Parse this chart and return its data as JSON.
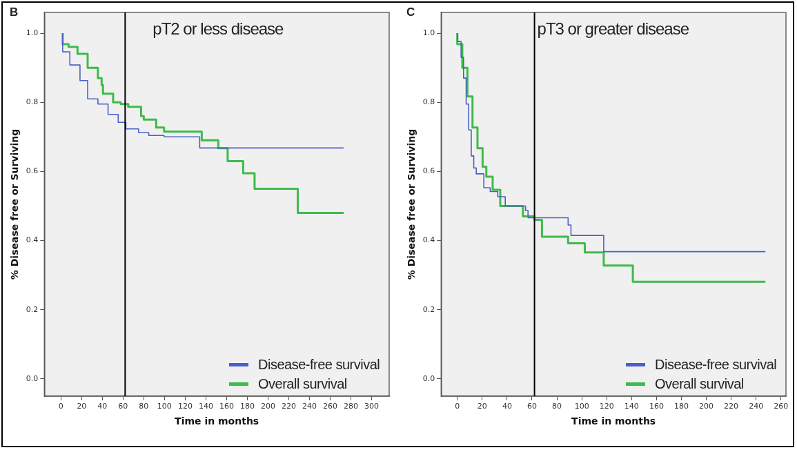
{
  "chart_data": [
    {
      "type": "step",
      "title": "pT2 or less disease",
      "annotations": [
        "B"
      ],
      "xlabel": "Time in months",
      "ylabel": "% Disease free or Surviving",
      "xlim": [
        -16,
        317
      ],
      "xticks": [
        0,
        20,
        40,
        60,
        80,
        100,
        120,
        140,
        160,
        180,
        200,
        220,
        240,
        260,
        280,
        300
      ],
      "ylim": [
        -0.05,
        1.06
      ],
      "yticks": [
        {
          "value": 0,
          "label": "0.0"
        },
        {
          "value": 0.2,
          "label": "0.2"
        },
        {
          "value": 0.4,
          "label": "0.4"
        },
        {
          "value": 0.6,
          "label": "0.6"
        },
        {
          "value": 0.8,
          "label": "0.8"
        },
        {
          "value": 1,
          "label": "1.0"
        }
      ],
      "grid": false,
      "legend": "bottom right",
      "ref_lines": [
        {
          "axis": "x",
          "value": 62,
          "color": "#000000"
        }
      ],
      "series": [
        {
          "name": "Disease-free survival",
          "color": "#4b5fc8",
          "x": [
            1.7,
            8.6,
            18.4,
            25.8,
            35.7,
            45.5,
            55.3,
            62.7,
            75,
            84.8,
            99.6,
            121.7,
            134,
            135,
            273
          ],
          "values": [
            1.0,
            0.946,
            0.908,
            0.863,
            0.81,
            0.795,
            0.765,
            0.742,
            0.723,
            0.712,
            0.704,
            0.7,
            0.7,
            0.668,
            0.668
          ]
        },
        {
          "name": "Overall survival",
          "color": "#3dbb4b",
          "x": [
            1.7,
            7.4,
            16,
            25.8,
            35.7,
            39.3,
            40.6,
            50.4,
            57.8,
            65,
            77.4,
            80,
            92,
            99.6,
            107,
            136,
            137.7,
            152,
            153.7,
            161,
            162,
            176,
            177,
            187,
            188,
            228.7,
            230,
            273
          ],
          "values": [
            1.0,
            0.968,
            0.96,
            0.94,
            0.9,
            0.87,
            0.85,
            0.825,
            0.8,
            0.795,
            0.787,
            0.76,
            0.75,
            0.727,
            0.715,
            0.715,
            0.69,
            0.69,
            0.667,
            0.667,
            0.63,
            0.63,
            0.595,
            0.595,
            0.55,
            0.55,
            0.48,
            0.48
          ]
        }
      ]
    },
    {
      "type": "step",
      "title": "pT3 or greater disease",
      "annotations": [
        "C"
      ],
      "xlabel": "Time in months",
      "ylabel": "% Disease free or Surviving",
      "xlim": [
        -13,
        264
      ],
      "xticks": [
        0,
        20,
        40,
        60,
        80,
        100,
        120,
        140,
        160,
        180,
        200,
        220,
        240,
        260
      ],
      "ylim": [
        -0.05,
        1.06
      ],
      "yticks": [
        {
          "value": 0,
          "label": "0.0"
        },
        {
          "value": 0.2,
          "label": "0.2"
        },
        {
          "value": 0.4,
          "label": "0.4"
        },
        {
          "value": 0.6,
          "label": "0.6"
        },
        {
          "value": 0.8,
          "label": "0.8"
        },
        {
          "value": 1,
          "label": "1.0"
        }
      ],
      "grid": false,
      "legend": "bottom right",
      "ref_lines": [
        {
          "axis": "x",
          "value": 62,
          "color": "#000000"
        }
      ],
      "series": [
        {
          "name": "Disease-free survival",
          "color": "#4b5fc8",
          "x": [
            0,
            3,
            5,
            7.1,
            9.1,
            11.2,
            13.2,
            15.2,
            21.3,
            26.4,
            32.5,
            38.5,
            41.6,
            54.8,
            56.8,
            61.9,
            89,
            91.3,
            99.4,
            117.6,
            118.7,
            247.5
          ],
          "values": [
            1.0,
            0.976,
            0.93,
            0.87,
            0.795,
            0.72,
            0.645,
            0.61,
            0.593,
            0.553,
            0.542,
            0.527,
            0.5,
            0.5,
            0.487,
            0.466,
            0.466,
            0.445,
            0.415,
            0.415,
            0.368,
            0.368
          ]
        },
        {
          "name": "Overall survival",
          "color": "#3dbb4b",
          "x": [
            0,
            4,
            8.1,
            12.2,
            16.2,
            20.3,
            23.3,
            28.4,
            34.5,
            39.6,
            52.7,
            61.9,
            68,
            71,
            89,
            91.3,
            102.4,
            104.5,
            117.6,
            118.7,
            141,
            142,
            247.5
          ],
          "values": [
            1.0,
            0.968,
            0.9,
            0.817,
            0.727,
            0.667,
            0.614,
            0.585,
            0.547,
            0.5,
            0.5,
            0.47,
            0.46,
            0.411,
            0.411,
            0.392,
            0.392,
            0.366,
            0.366,
            0.328,
            0.328,
            0.281,
            0.281
          ]
        }
      ]
    }
  ]
}
